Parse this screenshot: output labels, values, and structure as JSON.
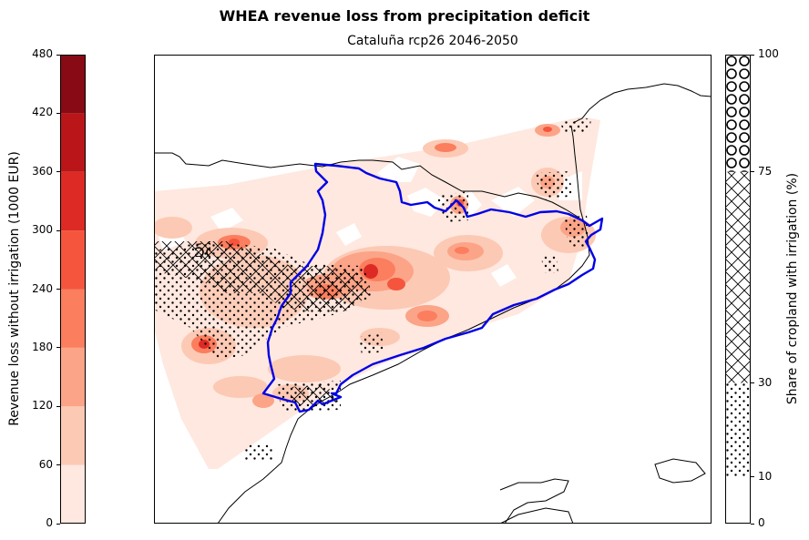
{
  "figure": {
    "title": "WHEA revenue loss from precipitation deficit",
    "subtitle": "Cataluña rcp26 2046-2050"
  },
  "revenue_colorbar": {
    "label": "Revenue loss without irrigation (1000 EUR)",
    "min": 0,
    "max": 480,
    "ticks": [
      "0",
      "60",
      "120",
      "180",
      "240",
      "300",
      "360",
      "420",
      "480"
    ],
    "bins": [
      {
        "from": 0,
        "to": 60,
        "color": "#fee8df"
      },
      {
        "from": 60,
        "to": 120,
        "color": "#fcc9b4"
      },
      {
        "from": 120,
        "to": 180,
        "color": "#fca487"
      },
      {
        "from": 180,
        "to": 240,
        "color": "#fb7e5e"
      },
      {
        "from": 240,
        "to": 300,
        "color": "#f6553d"
      },
      {
        "from": 300,
        "to": 360,
        "color": "#dd2a25"
      },
      {
        "from": 360,
        "to": 420,
        "color": "#ba1619"
      },
      {
        "from": 420,
        "to": 480,
        "color": "#870a14"
      }
    ]
  },
  "irrigation_legend": {
    "label": "Share of cropland with irrigation (%)",
    "min": 0,
    "max": 100,
    "ticks": [
      "0",
      "10",
      "30",
      "75",
      "100"
    ],
    "classes": [
      {
        "from": 0,
        "to": 10,
        "pattern": "none"
      },
      {
        "from": 10,
        "to": 30,
        "pattern": "dots"
      },
      {
        "from": 30,
        "to": 75,
        "pattern": "crosshatch"
      },
      {
        "from": 75,
        "to": 100,
        "pattern": "circles"
      }
    ]
  },
  "map": {
    "region": "Cataluña",
    "scenario": "rcp26",
    "period": "2046-2050",
    "boundary_color": "#0000e6",
    "coastline_color": "#000000"
  }
}
